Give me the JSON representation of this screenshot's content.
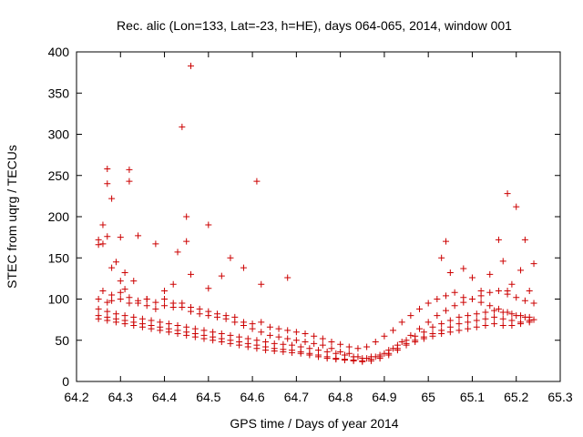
{
  "chart_data": {
    "type": "scatter",
    "title": "Rec. alic (Lon=133, Lat=-23, h=HE), days 064-065, 2014, window 001",
    "xlabel": "GPS time / Days of year 2014",
    "ylabel": "STEC from uqrg / TECUs",
    "xlim": [
      64.2,
      65.3
    ],
    "ylim": [
      0,
      400
    ],
    "xticks": [
      "64.2",
      "64.3",
      "64.4",
      "64.5",
      "64.6",
      "64.7",
      "64.8",
      "64.9",
      "65",
      "65.1",
      "65.2",
      "65.3"
    ],
    "yticks": [
      "0",
      "50",
      "100",
      "150",
      "200",
      "250",
      "300",
      "350",
      "400"
    ],
    "grid": false,
    "legend": "none",
    "marker": "plus",
    "color": "#cc0000",
    "series": [
      {
        "x": [
          64.25,
          64.25,
          64.26,
          64.26,
          64.27,
          64.27,
          64.27,
          64.28,
          64.29,
          64.3,
          64.31,
          64.32,
          64.32,
          64.34,
          64.38,
          64.43,
          64.44,
          64.45,
          64.46,
          64.5,
          64.61,
          64.28,
          64.3,
          64.31,
          64.33,
          64.36,
          64.4,
          64.42,
          64.45,
          64.46,
          64.5,
          64.53,
          64.55,
          64.58,
          64.62,
          64.68,
          65.03,
          65.04,
          65.05,
          65.08,
          65.1,
          65.12,
          65.14,
          65.16,
          65.17,
          65.18,
          65.2,
          65.22,
          65.24,
          65.19,
          65.18,
          65.21,
          65.23
        ],
        "y": [
          172,
          166,
          167,
          190,
          240,
          258,
          176,
          222,
          145,
          175,
          132,
          243,
          257,
          177,
          167,
          157,
          309,
          200,
          383,
          190,
          243,
          138,
          122,
          112,
          122,
          100,
          110,
          118,
          170,
          130,
          113,
          128,
          150,
          138,
          118,
          126,
          150,
          170,
          132,
          137,
          126,
          110,
          130,
          172,
          146,
          228,
          212,
          172,
          143,
          118,
          110,
          135,
          110
        ]
      },
      {
        "x": [
          64.25,
          64.27,
          64.28,
          64.3,
          64.32,
          64.34,
          64.36,
          64.38,
          64.4,
          64.42,
          64.44,
          64.46,
          64.48,
          64.5,
          64.52,
          64.54,
          64.56,
          64.58,
          64.6,
          64.62,
          64.64,
          64.66,
          64.68,
          64.7,
          64.72,
          64.74,
          64.76,
          64.78,
          64.8,
          64.82,
          64.84,
          64.86,
          64.88,
          64.9,
          64.92,
          64.94,
          64.96,
          64.98,
          65.0,
          65.02,
          65.04,
          65.06,
          65.08,
          65.1,
          65.12,
          65.14,
          65.16,
          65.18,
          65.2,
          65.22,
          65.24
        ],
        "y": [
          100,
          96,
          98,
          100,
          95,
          95,
          92,
          88,
          92,
          90,
          95,
          90,
          88,
          85,
          82,
          80,
          78,
          72,
          70,
          72,
          66,
          64,
          62,
          60,
          58,
          55,
          52,
          48,
          45,
          42,
          40,
          42,
          48,
          55,
          62,
          72,
          80,
          88,
          95,
          100,
          104,
          108,
          102,
          100,
          96,
          92,
          88,
          84,
          80,
          78,
          75
        ]
      },
      {
        "x": [
          64.25,
          64.27,
          64.29,
          64.31,
          64.33,
          64.35,
          64.37,
          64.39,
          64.41,
          64.43,
          64.45,
          64.47,
          64.49,
          64.51,
          64.53,
          64.55,
          64.57,
          64.59,
          64.61,
          64.63,
          64.65,
          64.67,
          64.69,
          64.71,
          64.73,
          64.75,
          64.77,
          64.79,
          64.81,
          64.83,
          64.85,
          64.87,
          64.89,
          64.91,
          64.93,
          64.95,
          64.97,
          64.99,
          65.01,
          65.03,
          65.05,
          65.07,
          65.09,
          65.11,
          65.13,
          65.15,
          65.17,
          65.19,
          65.21,
          65.23
        ],
        "y": [
          88,
          85,
          82,
          80,
          78,
          76,
          74,
          72,
          70,
          68,
          66,
          64,
          62,
          60,
          58,
          56,
          54,
          52,
          50,
          48,
          46,
          45,
          44,
          42,
          40,
          38,
          36,
          34,
          32,
          30,
          28,
          30,
          32,
          38,
          44,
          50,
          55,
          60,
          66,
          70,
          74,
          78,
          80,
          82,
          84,
          86,
          84,
          82,
          80,
          78
        ]
      },
      {
        "x": [
          64.25,
          64.27,
          64.29,
          64.31,
          64.33,
          64.35,
          64.37,
          64.39,
          64.41,
          64.43,
          64.45,
          64.47,
          64.49,
          64.51,
          64.53,
          64.55,
          64.57,
          64.59,
          64.61,
          64.63,
          64.65,
          64.67,
          64.69,
          64.71,
          64.73,
          64.75,
          64.77,
          64.79,
          64.81,
          64.83,
          64.85,
          64.87,
          64.89,
          64.91,
          64.93,
          64.95,
          64.97,
          64.99,
          65.01,
          65.03,
          65.05,
          65.07,
          65.09,
          65.11,
          65.13,
          65.15,
          65.17,
          65.19,
          65.21,
          65.23
        ],
        "y": [
          76,
          74,
          72,
          70,
          68,
          66,
          64,
          62,
          60,
          58,
          56,
          54,
          52,
          50,
          48,
          46,
          44,
          42,
          40,
          38,
          37,
          36,
          35,
          34,
          32,
          30,
          28,
          27,
          26,
          25,
          24,
          25,
          28,
          32,
          38,
          44,
          48,
          52,
          55,
          58,
          60,
          62,
          64,
          66,
          68,
          70,
          68,
          68,
          70,
          72
        ]
      },
      {
        "x": [
          64.26,
          64.28,
          64.3,
          64.32,
          64.34,
          64.36,
          64.38,
          64.4,
          64.42,
          64.44,
          64.46,
          64.48,
          64.5,
          64.52,
          64.54,
          64.56,
          64.58,
          64.6,
          64.62,
          64.64,
          64.66,
          64.68,
          64.7,
          64.72,
          64.74,
          64.76,
          64.78,
          64.8,
          64.82,
          64.84,
          64.86,
          64.88,
          64.9,
          64.92,
          64.94,
          64.96,
          64.98,
          65.0,
          65.02,
          65.04,
          65.06,
          65.08,
          65.1,
          65.12,
          65.14,
          65.16,
          65.18,
          65.2,
          65.22,
          65.24
        ],
        "y": [
          110,
          105,
          108,
          102,
          98,
          100,
          96,
          100,
          95,
          90,
          85,
          82,
          80,
          78,
          76,
          72,
          68,
          64,
          60,
          56,
          54,
          52,
          50,
          48,
          46,
          44,
          40,
          36,
          34,
          30,
          28,
          30,
          34,
          40,
          48,
          56,
          64,
          72,
          80,
          86,
          92,
          96,
          100,
          104,
          108,
          110,
          106,
          102,
          98,
          95
        ]
      },
      {
        "x": [
          64.25,
          64.27,
          64.29,
          64.31,
          64.33,
          64.35,
          64.37,
          64.39,
          64.41,
          64.43,
          64.45,
          64.47,
          64.49,
          64.51,
          64.53,
          64.55,
          64.57,
          64.59,
          64.61,
          64.63,
          64.65,
          64.67,
          64.69,
          64.71,
          64.73,
          64.75,
          64.77,
          64.79,
          64.81,
          64.83,
          64.85,
          64.87,
          64.89,
          64.91,
          64.93,
          64.95,
          64.97,
          64.99,
          65.01,
          65.03,
          65.05,
          65.07,
          65.09,
          65.11,
          65.13,
          65.15,
          65.17,
          65.19,
          65.21,
          65.23
        ],
        "y": [
          80,
          78,
          76,
          74,
          72,
          70,
          68,
          66,
          64,
          62,
          60,
          58,
          56,
          54,
          52,
          50,
          48,
          46,
          44,
          42,
          40,
          39,
          38,
          36,
          34,
          32,
          30,
          28,
          27,
          26,
          25,
          27,
          30,
          34,
          40,
          46,
          50,
          54,
          58,
          62,
          66,
          70,
          72,
          74,
          76,
          78,
          76,
          74,
          72,
          74
        ]
      }
    ]
  }
}
